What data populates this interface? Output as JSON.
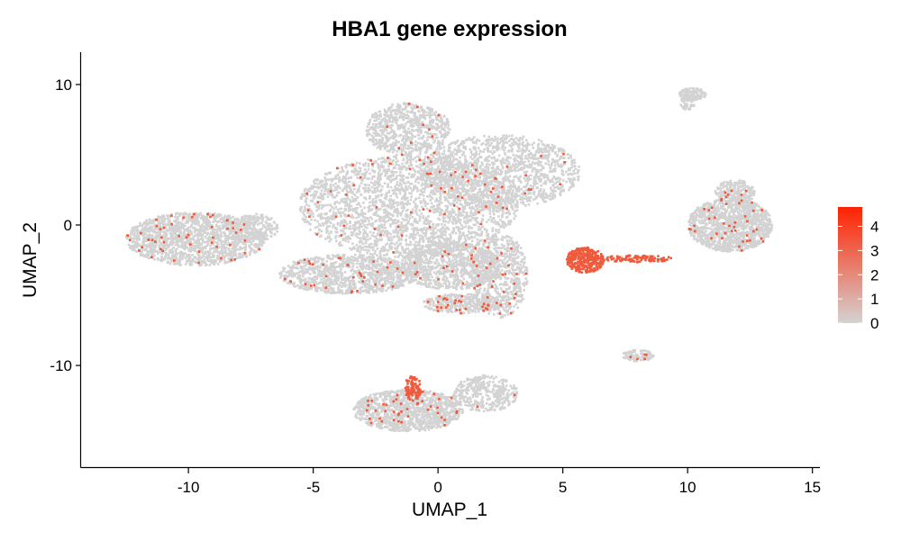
{
  "chart_data": {
    "type": "scatter",
    "title": "HBA1 gene expression",
    "xlabel": "UMAP_1",
    "ylabel": "UMAP_2",
    "xlim": [
      -14.3,
      15.3
    ],
    "ylim": [
      -17.3,
      12.3
    ],
    "xticks": [
      -10,
      -5,
      0,
      5,
      10,
      15
    ],
    "yticks": [
      -10,
      0,
      10
    ],
    "grid": false,
    "legend": {
      "placement": "right",
      "type": "colorbar",
      "ticks": [
        0,
        1,
        2,
        3,
        4
      ],
      "range": [
        0,
        4.8
      ],
      "low_color": "#d3d3d3",
      "high_color": "#ff2200"
    },
    "point_color_default": "#d3d3d3",
    "point_color_expressed": "#ef5a3c",
    "clusters": [
      {
        "cx": -1.2,
        "cy": 1.3,
        "rx": 4.4,
        "ry": 3.6,
        "n": 2600,
        "expr_frac": 0.025
      },
      {
        "cx": 2.5,
        "cy": 3.8,
        "rx": 3.2,
        "ry": 2.6,
        "n": 1400,
        "expr_frac": 0.02
      },
      {
        "cx": -1.2,
        "cy": 6.8,
        "rx": 1.7,
        "ry": 1.9,
        "n": 700,
        "expr_frac": 0.02
      },
      {
        "cx": -9.7,
        "cy": -1.0,
        "rx": 2.8,
        "ry": 1.9,
        "n": 1600,
        "expr_frac": 0.03
      },
      {
        "cx": -7.4,
        "cy": -0.2,
        "rx": 1.0,
        "ry": 1.0,
        "n": 200,
        "expr_frac": 0.01
      },
      {
        "cx": -3.6,
        "cy": -3.5,
        "rx": 2.8,
        "ry": 1.4,
        "n": 1100,
        "expr_frac": 0.04
      },
      {
        "cx": 0.5,
        "cy": -2.9,
        "rx": 2.0,
        "ry": 1.7,
        "n": 900,
        "expr_frac": 0.02
      },
      {
        "cx": 1.0,
        "cy": -5.6,
        "rx": 1.6,
        "ry": 0.7,
        "n": 380,
        "expr_frac": 0.05
      },
      {
        "cx": 2.5,
        "cy": -3.6,
        "rx": 1.1,
        "ry": 3.0,
        "n": 650,
        "expr_frac": 0.04
      },
      {
        "cx": 5.9,
        "cy": -2.5,
        "rx": 0.75,
        "ry": 0.9,
        "n": 320,
        "expr_frac": 1.0
      },
      {
        "cx": 8.0,
        "cy": -2.4,
        "rx": 1.4,
        "ry": 0.25,
        "n": 110,
        "expr_frac": 0.9
      },
      {
        "cx": 11.7,
        "cy": 0.0,
        "rx": 1.7,
        "ry": 1.9,
        "n": 1300,
        "expr_frac": 0.03
      },
      {
        "cx": 11.9,
        "cy": 2.3,
        "rx": 0.8,
        "ry": 0.9,
        "n": 220,
        "expr_frac": 0.02
      },
      {
        "cx": 10.2,
        "cy": 9.3,
        "rx": 0.55,
        "ry": 0.45,
        "n": 130,
        "expr_frac": 0.0
      },
      {
        "cx": 10.0,
        "cy": 8.7,
        "rx": 0.3,
        "ry": 0.5,
        "n": 50,
        "expr_frac": 0.0
      },
      {
        "cx": 8.0,
        "cy": -9.3,
        "rx": 0.65,
        "ry": 0.4,
        "n": 110,
        "expr_frac": 0.02
      },
      {
        "cx": -1.2,
        "cy": -13.2,
        "rx": 2.2,
        "ry": 1.5,
        "n": 1200,
        "expr_frac": 0.03
      },
      {
        "cx": 1.9,
        "cy": -12.0,
        "rx": 1.3,
        "ry": 1.3,
        "n": 380,
        "expr_frac": 0.01
      },
      {
        "cx": -1.0,
        "cy": -11.6,
        "rx": 0.35,
        "ry": 0.9,
        "n": 90,
        "expr_frac": 1.0
      }
    ]
  }
}
